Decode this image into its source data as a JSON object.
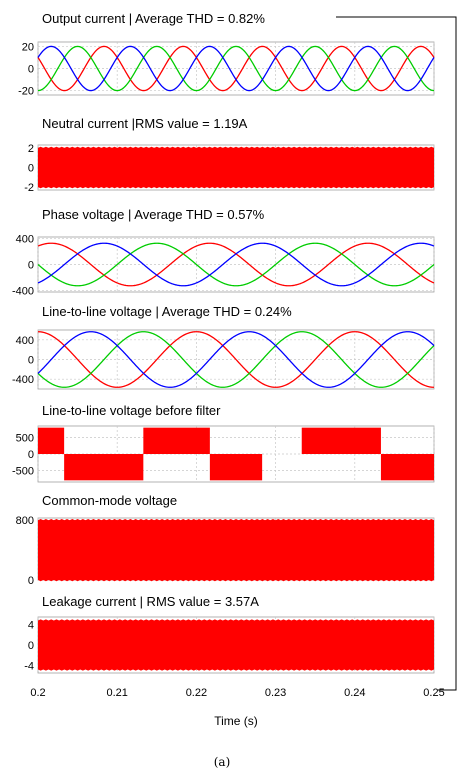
{
  "chart_data": [
    {
      "type": "line",
      "title": "Output current | Average THD = 0.82%",
      "yticks": [
        "20",
        "0",
        "-20"
      ],
      "yvals": [
        20,
        0,
        -20
      ],
      "ylim": [
        -24,
        24
      ],
      "grid": true,
      "series": [
        {
          "color": "#ff0000",
          "kind": "sine",
          "amplitude": 20,
          "frequency_hz": 100,
          "phase_deg": 150
        },
        {
          "color": "#00cc00",
          "kind": "sine",
          "amplitude": 20,
          "frequency_hz": 100,
          "phase_deg": 270
        },
        {
          "color": "#0000ff",
          "kind": "sine",
          "amplitude": 20,
          "frequency_hz": 100,
          "phase_deg": 30
        }
      ]
    },
    {
      "type": "area",
      "title": "Neutral current |RMS value = 1.19A",
      "yticks": [
        "2",
        "0",
        "-2"
      ],
      "yvals": [
        2,
        0,
        -2
      ],
      "ylim": [
        -2.3,
        2.3
      ],
      "grid": true,
      "series": [
        {
          "color": "#ff0000",
          "kind": "band",
          "upper": 2.0,
          "lower": -2.0
        }
      ]
    },
    {
      "type": "line",
      "title": "Phase voltage | Average THD = 0.57%",
      "yticks": [
        "400",
        "0",
        "-400"
      ],
      "yvals": [
        400,
        0,
        -400
      ],
      "ylim": [
        -420,
        420
      ],
      "grid": true,
      "series": [
        {
          "color": "#ff0000",
          "kind": "sine",
          "amplitude": 325,
          "frequency_hz": 50,
          "phase_deg": 60
        },
        {
          "color": "#00cc00",
          "kind": "sine",
          "amplitude": 325,
          "frequency_hz": 50,
          "phase_deg": 180
        },
        {
          "color": "#0000ff",
          "kind": "sine",
          "amplitude": 325,
          "frequency_hz": 50,
          "phase_deg": 300
        }
      ]
    },
    {
      "type": "line",
      "title": "Line-to-line voltage | Average THD = 0.24%",
      "yticks": [
        "400",
        "0",
        "-400"
      ],
      "yvals": [
        400,
        0,
        -400
      ],
      "ylim": [
        -600,
        600
      ],
      "grid": true,
      "series": [
        {
          "color": "#ff0000",
          "kind": "sine",
          "amplitude": 565,
          "frequency_hz": 50,
          "phase_deg": 90
        },
        {
          "color": "#00cc00",
          "kind": "sine",
          "amplitude": 565,
          "frequency_hz": 50,
          "phase_deg": 210
        },
        {
          "color": "#0000ff",
          "kind": "sine",
          "amplitude": 565,
          "frequency_hz": 50,
          "phase_deg": 330
        }
      ]
    },
    {
      "type": "area",
      "title": "Line-to-line voltage before filter",
      "yticks": [
        "500",
        "0",
        "-500"
      ],
      "yvals": [
        500,
        0,
        -500
      ],
      "ylim": [
        -850,
        850
      ],
      "grid": true,
      "series": [
        {
          "color": "#ff0000",
          "kind": "segments",
          "segments": [
            [
              0.2,
              0.2033,
              0,
              800
            ],
            [
              0.2033,
              0.2133,
              -800,
              0
            ],
            [
              0.2133,
              0.2217,
              0,
              800
            ],
            [
              0.2217,
              0.2283,
              -800,
              0
            ],
            [
              0.2283,
              0.2333,
              0,
              0
            ],
            [
              0.2333,
              0.2433,
              0,
              800
            ],
            [
              0.2433,
              0.25,
              -800,
              0
            ]
          ]
        }
      ]
    },
    {
      "type": "area",
      "title": "Common-mode voltage",
      "yticks": [
        "800",
        "0"
      ],
      "yvals": [
        800,
        0
      ],
      "ylim": [
        0,
        830
      ],
      "grid": true,
      "series": [
        {
          "color": "#ff0000",
          "kind": "band",
          "upper": 800,
          "lower": 0
        }
      ]
    },
    {
      "type": "area",
      "title": "Leakage current | RMS value = 3.57A",
      "yticks": [
        "4",
        "0",
        "-4"
      ],
      "yvals": [
        4,
        0,
        -4
      ],
      "ylim": [
        -5.5,
        5.5
      ],
      "grid": true,
      "series": [
        {
          "color": "#ff0000",
          "kind": "band",
          "upper": 4.8,
          "lower": -4.8
        }
      ]
    }
  ],
  "xaxis": {
    "label": "Time (s)",
    "ticks": [
      "0.2",
      "0.21",
      "0.22",
      "0.23",
      "0.24",
      "0.25"
    ],
    "tickvals": [
      0.2,
      0.21,
      0.22,
      0.23,
      0.24,
      0.25
    ],
    "xlim": [
      0.2,
      0.25
    ]
  },
  "caption": "(a)"
}
